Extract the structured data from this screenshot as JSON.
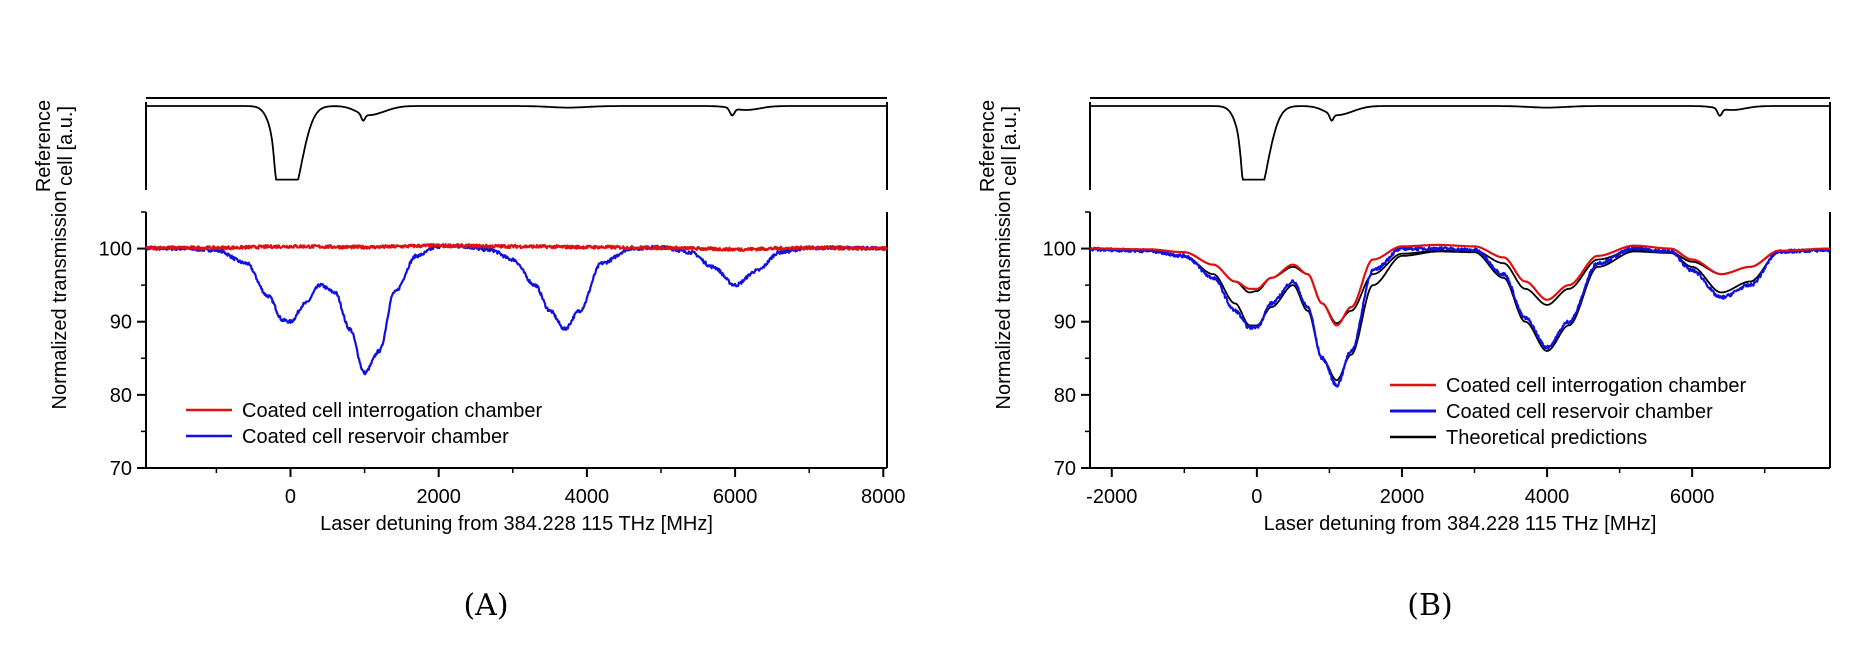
{
  "chart_data": [
    {
      "panel_caption": "(A)",
      "type": "line",
      "xlabel": "Laser detuning from 384.228 115 THz [MHz]",
      "xlim": [
        -1950,
        8050
      ],
      "xticks": [
        0,
        2000,
        4000,
        6000,
        8000
      ],
      "xtick_labels": [
        "0",
        "2000",
        "4000",
        "6000",
        "8000"
      ],
      "reference": {
        "ylabel": "Reference cell [a.u.]",
        "dips": [
          {
            "center": -60,
            "depth": 0.78,
            "width": 140
          },
          {
            "center": 60,
            "depth": 0.55,
            "width": 150
          },
          {
            "center": -180,
            "depth": 0.35,
            "width": 35
          },
          {
            "center": -120,
            "depth": 0.25,
            "width": 30
          },
          {
            "center": 0,
            "depth": 0.2,
            "width": 30
          },
          {
            "center": 1000,
            "depth": 0.08,
            "width": 140
          },
          {
            "center": 1200,
            "depth": 0.06,
            "width": 160
          },
          {
            "center": 980,
            "depth": 0.08,
            "width": 25
          },
          {
            "center": 3750,
            "depth": 0.02,
            "width": 250
          },
          {
            "center": 5960,
            "depth": 0.09,
            "width": 30
          },
          {
            "center": 6150,
            "depth": 0.05,
            "width": 180
          }
        ]
      },
      "transmission": {
        "ylabel": "Normalized transmission",
        "ylim": [
          70,
          105
        ],
        "yticks": [
          70,
          80,
          90,
          100
        ],
        "ytick_labels": [
          "70",
          "80",
          "90",
          "100"
        ],
        "series": [
          {
            "name": "Coated cell interrogation chamber",
            "color": "#e01010",
            "style": "noisy",
            "x": [
              -1950,
              -1000,
              0,
              1000,
              2000,
              3000,
              4000,
              5000,
              6000,
              7000,
              8050
            ],
            "y": [
              100.1,
              100.1,
              100.3,
              100.2,
              100.4,
              100.3,
              100.2,
              100.1,
              99.9,
              100.1,
              100.0
            ]
          },
          {
            "name": "Coated cell reservoir chamber",
            "color": "#1010e0",
            "style": "noisy",
            "x": [
              -1950,
              -1500,
              -1000,
              -600,
              -300,
              -100,
              0,
              200,
              400,
              600,
              800,
              1000,
              1200,
              1400,
              1700,
              2000,
              2300,
              2700,
              3000,
              3300,
              3500,
              3700,
              3900,
              4200,
              4600,
              5000,
              5400,
              5700,
              6000,
              6300,
              6600,
              7000,
              7500,
              8050
            ],
            "y": [
              100.0,
              100.0,
              99.8,
              98.0,
              93.5,
              90.2,
              90.0,
              92.5,
              95.0,
              94.0,
              89.0,
              83.0,
              86.0,
              94.0,
              99.0,
              100.3,
              100.3,
              99.8,
              98.5,
              95.0,
              91.5,
              89.0,
              91.5,
              98.0,
              100.0,
              100.2,
              99.5,
              97.5,
              95.0,
              97.0,
              99.5,
              100.1,
              100.1,
              100.0
            ]
          }
        ],
        "legend_position": "bottom-left"
      }
    },
    {
      "panel_caption": "(B)",
      "type": "line",
      "xlabel": "Laser detuning from 384.228 115 THz [MHz]",
      "xlim": [
        -2300,
        7900
      ],
      "xticks": [
        -2000,
        0,
        2000,
        4000,
        6000
      ],
      "xtick_labels": [
        "-2000",
        "0",
        "2000",
        "4000",
        "6000"
      ],
      "reference": {
        "ylabel": "Reference cell [a.u.]",
        "dips": [
          {
            "center": -60,
            "depth": 0.78,
            "width": 140
          },
          {
            "center": 60,
            "depth": 0.55,
            "width": 150
          },
          {
            "center": -180,
            "depth": 0.35,
            "width": 35
          },
          {
            "center": -120,
            "depth": 0.25,
            "width": 30
          },
          {
            "center": 0,
            "depth": 0.2,
            "width": 30
          },
          {
            "center": 1050,
            "depth": 0.08,
            "width": 140
          },
          {
            "center": 1250,
            "depth": 0.06,
            "width": 160
          },
          {
            "center": 1030,
            "depth": 0.08,
            "width": 25
          },
          {
            "center": 4000,
            "depth": 0.02,
            "width": 250
          },
          {
            "center": 6380,
            "depth": 0.09,
            "width": 30
          },
          {
            "center": 6550,
            "depth": 0.05,
            "width": 180
          }
        ]
      },
      "transmission": {
        "ylabel": "Normalized transmission",
        "ylim": [
          70,
          105
        ],
        "yticks": [
          70,
          80,
          90,
          100
        ],
        "ytick_labels": [
          "70",
          "80",
          "90",
          "100"
        ],
        "series": [
          {
            "name": "Coated cell interrogation chamber",
            "color": "#e01010",
            "style": "smooth",
            "x": [
              -2300,
              -1500,
              -1000,
              -600,
              -300,
              -100,
              0,
              200,
              500,
              700,
              900,
              1100,
              1300,
              1600,
              2000,
              2500,
              3000,
              3400,
              3700,
              4000,
              4300,
              4700,
              5200,
              5700,
              6000,
              6400,
              6800,
              7200,
              7900
            ],
            "y": [
              100.0,
              99.9,
              99.5,
              97.8,
              95.5,
              94.5,
              94.5,
              96.0,
              97.8,
              96.5,
              92.5,
              89.5,
              92.0,
              98.5,
              100.3,
              100.5,
              100.3,
              98.8,
              95.5,
              93.0,
              95.0,
              99.0,
              100.4,
              100.0,
              98.5,
              96.5,
              97.5,
              99.7,
              100.0
            ]
          },
          {
            "name": "Coated cell reservoir chamber",
            "color": "#1010e0",
            "style": "noisy",
            "x": [
              -2300,
              -1500,
              -1000,
              -600,
              -300,
              -100,
              0,
              200,
              500,
              700,
              900,
              1100,
              1300,
              1600,
              2000,
              2500,
              3000,
              3400,
              3700,
              4000,
              4300,
              4700,
              5200,
              5700,
              6000,
              6400,
              6800,
              7200,
              7900
            ],
            "y": [
              99.9,
              99.7,
              99.0,
              96.0,
              91.5,
              89.2,
              89.3,
              92.5,
              95.5,
              92.0,
              85.0,
              81.3,
              86.0,
              97.0,
              100.0,
              100.0,
              99.8,
              96.5,
              90.5,
              86.5,
              90.0,
              98.0,
              100.0,
              99.6,
              97.0,
              93.3,
              95.0,
              99.6,
              99.8
            ]
          },
          {
            "name": "Theoretical predictions",
            "color": "#000000",
            "style": "smooth",
            "x": [
              -2300,
              -1500,
              -1000,
              -600,
              -300,
              -100,
              0,
              200,
              500,
              700,
              900,
              1100,
              1300,
              1600,
              2000,
              2500,
              3000,
              3400,
              3700,
              4000,
              4300,
              4700,
              5200,
              5700,
              6000,
              6400,
              6800,
              7200,
              7900
            ],
            "y": [
              100.0,
              99.8,
              99.5,
              97.8,
              95.5,
              94.0,
              94.2,
              96.0,
              97.5,
              96.5,
              92.5,
              89.8,
              91.5,
              96.5,
              99.3,
              99.7,
              99.7,
              98.0,
              94.5,
              92.3,
              94.5,
              98.5,
              99.8,
              99.5,
              98.2,
              96.5,
              97.5,
              99.6,
              100.0
            ]
          },
          {
            "name": "",
            "color": "#000000",
            "style": "smooth",
            "x": [
              -2300,
              -1500,
              -1000,
              -600,
              -300,
              -100,
              0,
              200,
              500,
              700,
              900,
              1100,
              1300,
              1600,
              2000,
              2500,
              3000,
              3400,
              3700,
              4000,
              4300,
              4700,
              5200,
              5700,
              6000,
              6400,
              6800,
              7200,
              7900
            ],
            "y": [
              99.9,
              99.7,
              99.0,
              96.5,
              92.5,
              89.5,
              89.5,
              92.0,
              95.0,
              91.5,
              85.0,
              82.0,
              85.5,
              95.0,
              99.0,
              99.6,
              99.5,
              96.0,
              90.0,
              86.0,
              89.5,
              97.5,
              99.6,
              99.4,
              97.5,
              94.0,
              95.5,
              99.5,
              99.9
            ]
          }
        ],
        "legend_entries": [
          {
            "name": "Coated cell interrogation chamber",
            "color": "#e01010"
          },
          {
            "name": "Coated cell reservoir chamber",
            "color": "#1010e0"
          },
          {
            "name": "Theoretical predictions",
            "color": "#000000"
          }
        ],
        "legend_position": "bottom-right"
      }
    }
  ]
}
